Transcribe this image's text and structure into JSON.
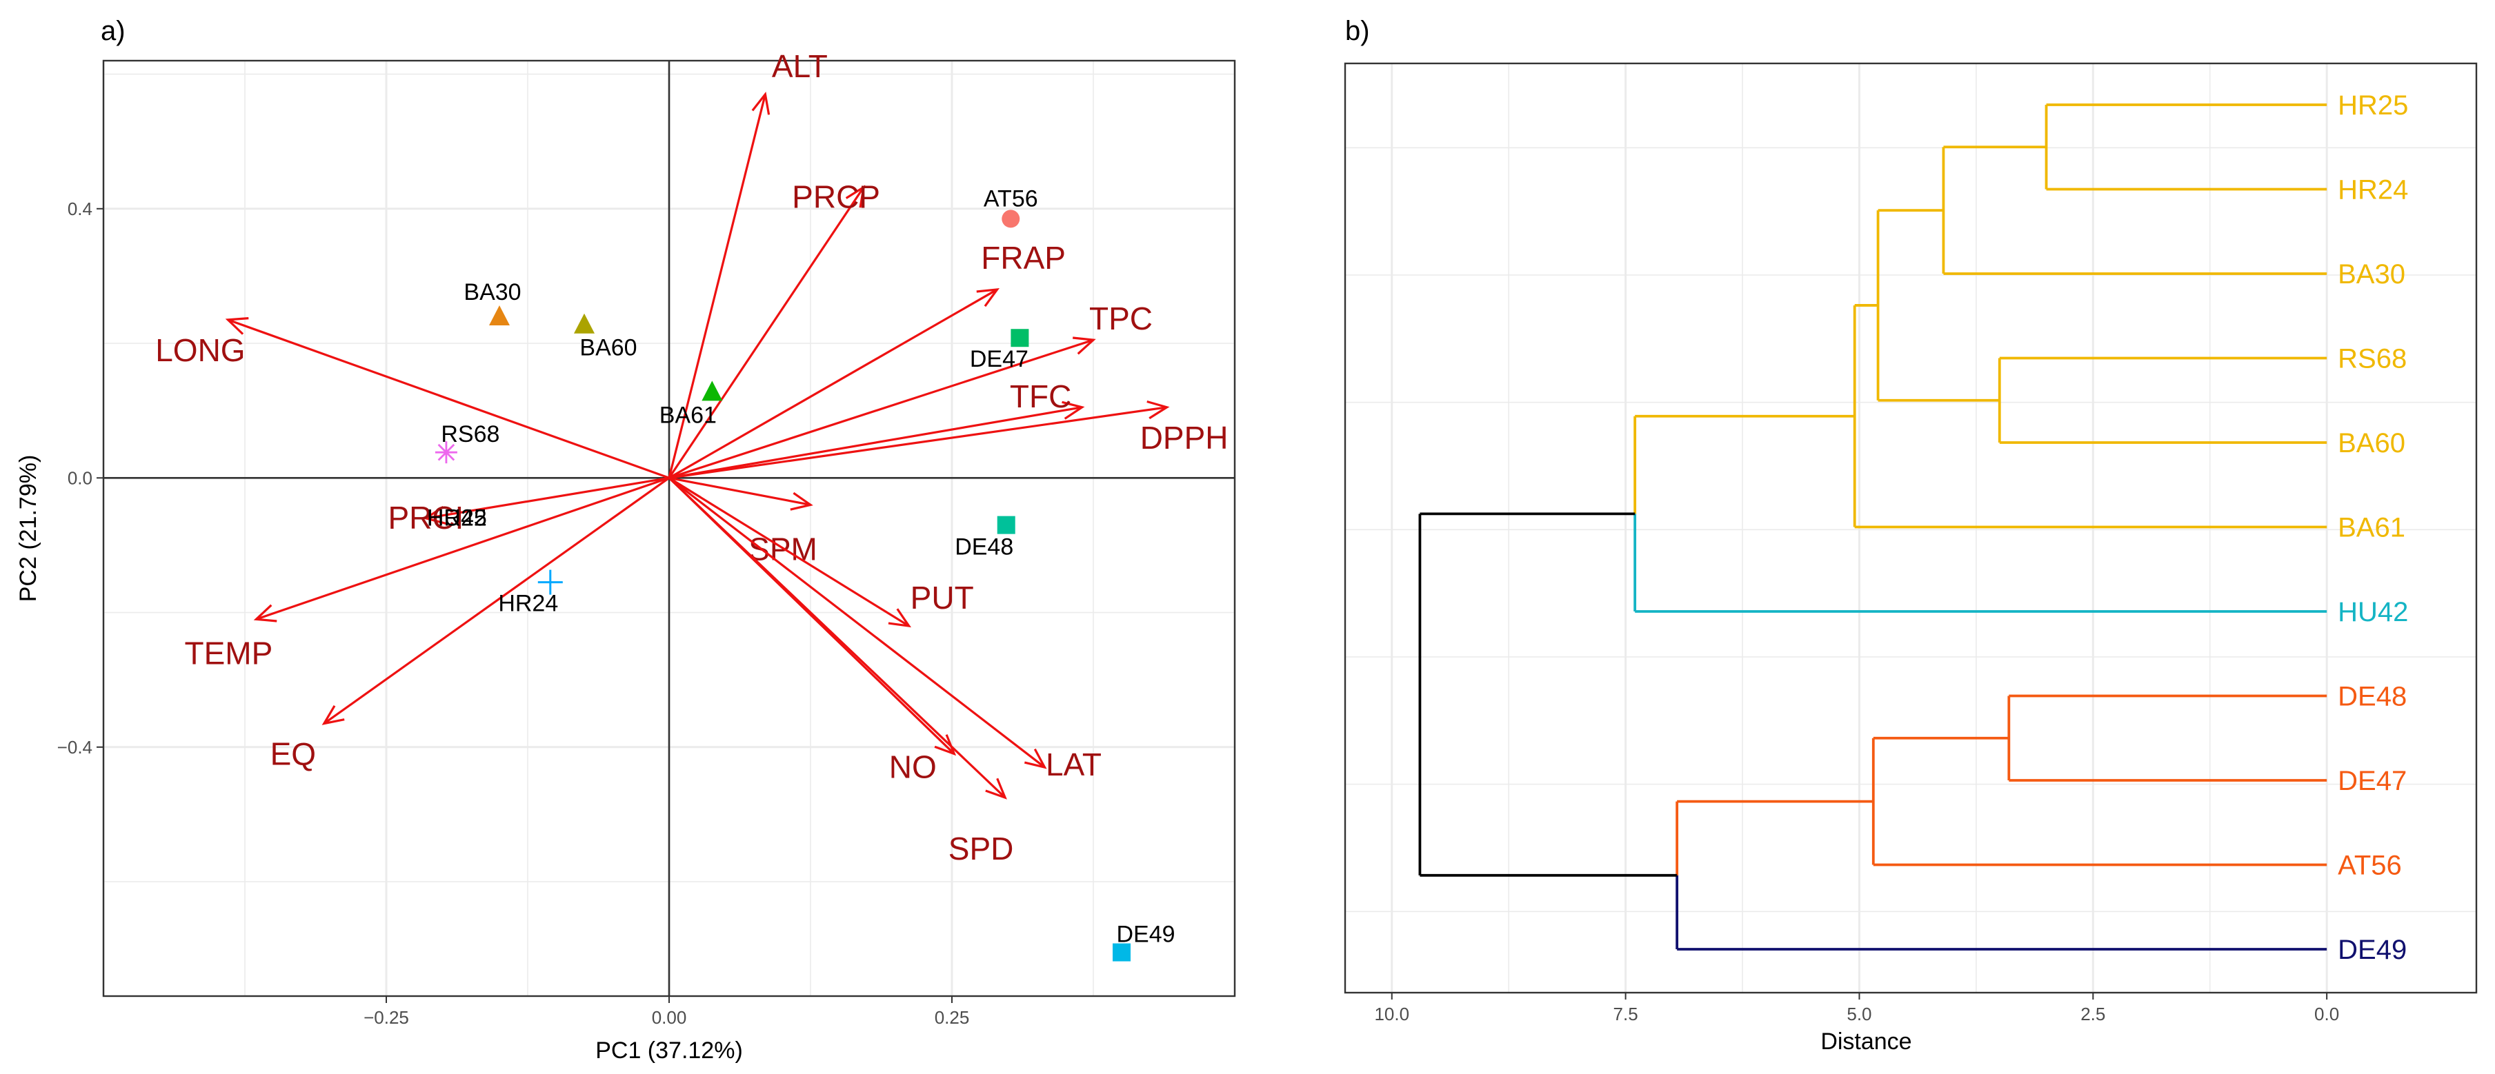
{
  "panel_labels": {
    "a": "a)",
    "b": "b)"
  },
  "colors": {
    "arrow": "#ee1111",
    "variable_label": "#a01010",
    "cluster_yellow": "#f0b800",
    "cluster_cyan": "#14b4c4",
    "cluster_orange": "#f55a12",
    "cluster_navy": "#10106e",
    "cluster_black": "#000000",
    "grid": "#ebebeb",
    "panel_border": "#333333"
  },
  "chart_data": [
    {
      "type": "scatter",
      "subtype": "pca_biplot",
      "xlabel": "PC1 (37.12%)",
      "ylabel": "PC2 (21.79%)",
      "xlim": [
        -0.5,
        0.5
      ],
      "ylim": [
        -0.77,
        0.62
      ],
      "xticks": [
        -0.25,
        0.0,
        0.25
      ],
      "xtick_labels": [
        "−0.25",
        "0.00",
        "0.25"
      ],
      "yticks": [
        -0.4,
        0.0,
        0.4
      ],
      "ytick_labels": [
        "−0.4",
        "0.0",
        "0.4"
      ],
      "grid": true,
      "variables": [
        {
          "name": "ALT",
          "x": 0.085,
          "y": 0.57
        },
        {
          "name": "PRCP",
          "x": 0.172,
          "y": 0.432
        },
        {
          "name": "FRAP",
          "x": 0.29,
          "y": 0.28
        },
        {
          "name": "TPC",
          "x": 0.375,
          "y": 0.205
        },
        {
          "name": "TFC",
          "x": 0.365,
          "y": 0.105
        },
        {
          "name": "DPPH",
          "x": 0.44,
          "y": 0.105
        },
        {
          "name": "LONG",
          "x": -0.39,
          "y": 0.235
        },
        {
          "name": "PRCI",
          "x": -0.215,
          "y": -0.06
        },
        {
          "name": "TEMP",
          "x": -0.365,
          "y": -0.21
        },
        {
          "name": "EQ",
          "x": -0.305,
          "y": -0.365
        },
        {
          "name": "SPM",
          "x": 0.125,
          "y": -0.04
        },
        {
          "name": "PUT",
          "x": 0.212,
          "y": -0.22
        },
        {
          "name": "NO",
          "x": 0.252,
          "y": -0.41
        },
        {
          "name": "SPD",
          "x": 0.297,
          "y": -0.475
        },
        {
          "name": "LAT",
          "x": 0.332,
          "y": -0.43
        }
      ],
      "samples": [
        {
          "name": "AT56",
          "x": 0.302,
          "y": 0.385,
          "shape": "circle",
          "color": "#f8766d"
        },
        {
          "name": "BA30",
          "x": -0.15,
          "y": 0.24,
          "shape": "triangle",
          "color": "#e68613"
        },
        {
          "name": "BA60",
          "x": -0.075,
          "y": 0.228,
          "shape": "triangle",
          "color": "#aba300"
        },
        {
          "name": "BA61",
          "x": 0.038,
          "y": 0.128,
          "shape": "triangle",
          "color": "#0cb702"
        },
        {
          "name": "DE47",
          "x": 0.31,
          "y": 0.208,
          "shape": "square",
          "color": "#00be67"
        },
        {
          "name": "RS68",
          "x": -0.197,
          "y": 0.038,
          "shape": "asterisk",
          "color": "#ed68ed"
        },
        {
          "name": "HR25",
          "x": -0.212,
          "y": -0.03,
          "shape": "none",
          "color": "#ff61cc"
        },
        {
          "name": "HU42",
          "x": -0.212,
          "y": -0.03,
          "shape": "none",
          "color": "#8494ff"
        },
        {
          "name": "HR24",
          "x": -0.105,
          "y": -0.155,
          "shape": "plus",
          "color": "#00a9ff"
        },
        {
          "name": "DE48",
          "x": 0.298,
          "y": -0.07,
          "shape": "square",
          "color": "#00c19a"
        },
        {
          "name": "DE49",
          "x": 0.4,
          "y": -0.705,
          "shape": "square",
          "color": "#00b8e7"
        }
      ]
    },
    {
      "type": "dendrogram",
      "xlabel": "Distance",
      "xlim": [
        10.5,
        -1.6
      ],
      "xticks": [
        10.0,
        7.5,
        5.0,
        2.5,
        0.0
      ],
      "xtick_labels": [
        "10.0",
        "7.5",
        "5.0",
        "2.5",
        "0.0"
      ],
      "grid": true,
      "leaves": [
        {
          "name": "HR25",
          "cluster": "yellow"
        },
        {
          "name": "HR24",
          "cluster": "yellow"
        },
        {
          "name": "BA30",
          "cluster": "yellow"
        },
        {
          "name": "RS68",
          "cluster": "yellow"
        },
        {
          "name": "BA60",
          "cluster": "yellow"
        },
        {
          "name": "BA61",
          "cluster": "yellow"
        },
        {
          "name": "HU42",
          "cluster": "cyan"
        },
        {
          "name": "DE48",
          "cluster": "orange"
        },
        {
          "name": "DE47",
          "cluster": "orange"
        },
        {
          "name": "AT56",
          "cluster": "orange"
        },
        {
          "name": "DE49",
          "cluster": "navy"
        }
      ],
      "merges": [
        {
          "id": "m1",
          "left": "HR25",
          "right": "HR24",
          "height": 3.0,
          "cluster": "yellow"
        },
        {
          "id": "m2",
          "left": "m1",
          "right": "BA30",
          "height": 4.1,
          "cluster": "yellow"
        },
        {
          "id": "m3",
          "left": "RS68",
          "right": "BA60",
          "height": 3.5,
          "cluster": "yellow"
        },
        {
          "id": "m4",
          "left": "m2",
          "right": "m3",
          "height": 4.8,
          "cluster": "yellow"
        },
        {
          "id": "m5",
          "left": "m4",
          "right": "BA61",
          "height": 5.05,
          "cluster": "yellow"
        },
        {
          "id": "m6",
          "left": "m5",
          "right": "HU42",
          "height": 7.4,
          "cluster": "yellow"
        },
        {
          "id": "m7",
          "left": "DE48",
          "right": "DE47",
          "height": 3.4,
          "cluster": "orange"
        },
        {
          "id": "m8",
          "left": "m7",
          "right": "AT56",
          "height": 4.85,
          "cluster": "orange"
        },
        {
          "id": "m9",
          "left": "m8",
          "right": "DE49",
          "height": 6.95,
          "cluster": "orange"
        },
        {
          "id": "m10",
          "left": "m6",
          "right": "m9",
          "height": 9.7,
          "cluster": "black"
        }
      ]
    }
  ]
}
